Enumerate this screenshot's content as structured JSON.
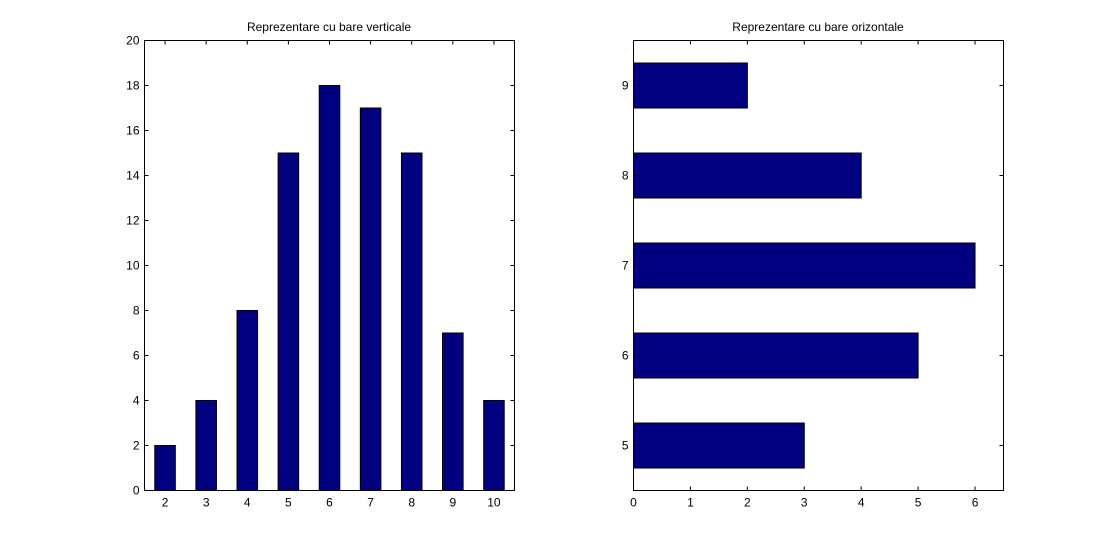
{
  "figure_background": "#ffffff",
  "bar_color": "#000080",
  "chart_data": [
    {
      "type": "bar",
      "orientation": "vertical",
      "title": "Reprezentare cu bare verticale",
      "categories": [
        2,
        3,
        4,
        5,
        6,
        7,
        8,
        9,
        10
      ],
      "values": [
        2,
        4,
        8,
        15,
        18,
        17,
        15,
        7,
        4
      ],
      "xlim": [
        1.5,
        10.5
      ],
      "ylim": [
        0,
        20
      ],
      "xticks": [
        "2",
        "3",
        "4",
        "5",
        "6",
        "7",
        "8",
        "9",
        "10"
      ],
      "yticks": [
        "0",
        "2",
        "4",
        "6",
        "8",
        "10",
        "12",
        "14",
        "16",
        "18",
        "20"
      ],
      "grid": false
    },
    {
      "type": "bar",
      "orientation": "horizontal",
      "title": "Reprezentare cu bare orizontale",
      "categories": [
        5,
        6,
        7,
        8,
        9
      ],
      "values": [
        3,
        5,
        6,
        4,
        2
      ],
      "xlim": [
        0,
        6.5
      ],
      "ylim": [
        4.5,
        9.5
      ],
      "xticks": [
        "0",
        "1",
        "2",
        "3",
        "4",
        "5",
        "6"
      ],
      "yticks": [
        "5",
        "6",
        "7",
        "8",
        "9"
      ],
      "grid": false
    }
  ]
}
